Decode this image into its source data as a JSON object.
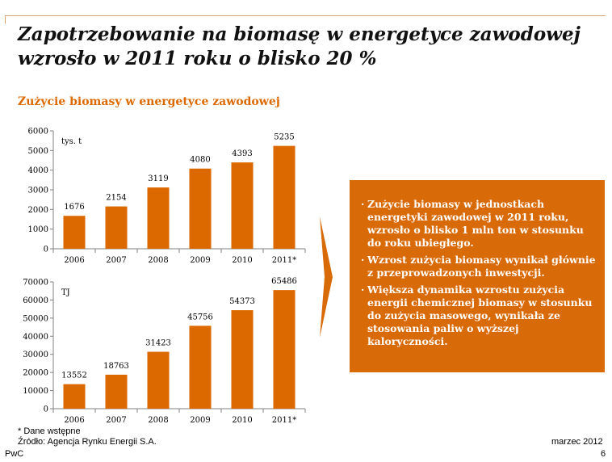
{
  "title": "Zapotrzebowanie na biomasę w energetyce zawodowej wzrosło w 2011 roku o blisko 20 %",
  "subtitle": "Zużycie biomasy w energetyce zawodowej",
  "colors": {
    "bar": "#dc6900",
    "box": "#d96a08",
    "arrow": "#d96a08",
    "rule": "#d9a070"
  },
  "chart_data": [
    {
      "type": "bar",
      "ylabel": "tys. t",
      "categories": [
        "2006",
        "2007",
        "2008",
        "2009",
        "2010",
        "2011*"
      ],
      "values": [
        1676,
        2154,
        3119,
        4080,
        4393,
        5235
      ],
      "data_labels": [
        "1676",
        "2154",
        "3119",
        "4080",
        "4393",
        "5235"
      ],
      "ylim": [
        0,
        6000
      ],
      "yticks": [
        0,
        1000,
        2000,
        3000,
        4000,
        5000,
        6000
      ],
      "grid": false
    },
    {
      "type": "bar",
      "ylabel": "TJ",
      "categories": [
        "2006",
        "2007",
        "2008",
        "2009",
        "2010",
        "2011*"
      ],
      "values": [
        13552,
        18763,
        31423,
        45756,
        54373,
        65486
      ],
      "data_labels": [
        "13552",
        "18763",
        "31423",
        "45756",
        "54373",
        "65486"
      ],
      "ylim": [
        0,
        70000
      ],
      "yticks": [
        0,
        10000,
        20000,
        30000,
        40000,
        50000,
        60000,
        70000
      ],
      "grid": false
    }
  ],
  "bullets": [
    "Zużycie biomasy w jednostkach energetyki zawodowej w 2011 roku, wzrosło o blisko 1 mln ton w stosunku do roku ubiegłego.",
    "Wzrost zużycia biomasy wynikał głównie z przeprowadzonych inwestycji.",
    "Większa dynamika wzrostu zużycia energii chemicznej biomasy w stosunku do zużycia masowego, wynikała ze stosowania paliw o wyższej kaloryczności."
  ],
  "footer": {
    "note": "* Dane wstępne",
    "source": "Źródło: Agencja Rynku Energii S.A.",
    "brand": "PwC",
    "date": "marzec  2012",
    "page": "6"
  }
}
